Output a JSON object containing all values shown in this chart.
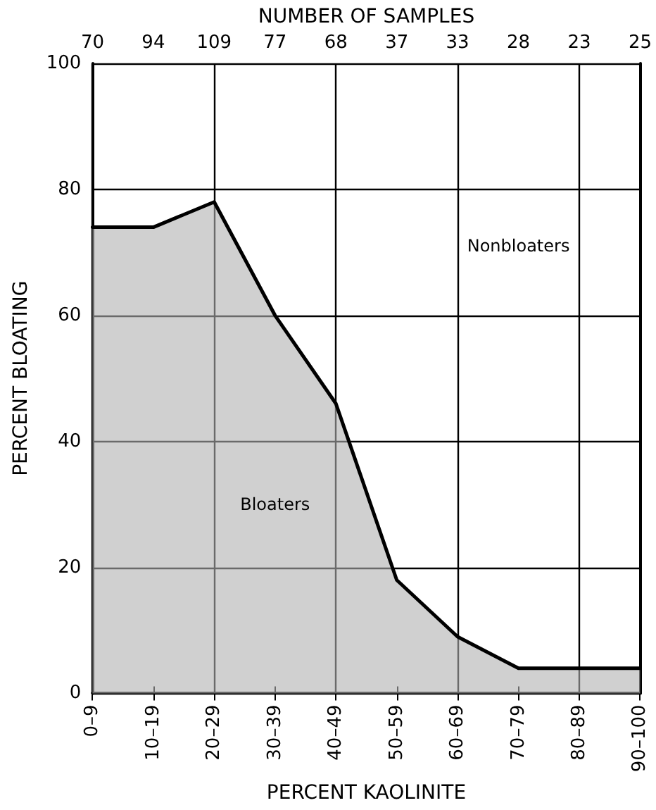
{
  "chart_data": {
    "type": "area",
    "xlabel": "PERCENT KAOLINITE",
    "ylabel": "PERCENT BLOATING",
    "x2label": "NUMBER OF SAMPLES",
    "categories": [
      "0–9",
      "10–19",
      "20–29",
      "30–39",
      "40–49",
      "50–59",
      "60–69",
      "70–79",
      "80–89",
      "90–100"
    ],
    "series": [
      {
        "color": "#000000",
        "values": [
          74,
          74,
          78,
          60,
          46,
          18,
          9,
          4,
          4,
          4
        ]
      }
    ],
    "ylim": [
      0,
      100
    ],
    "yticks": [
      0,
      20,
      40,
      60,
      80,
      100
    ],
    "grid": true,
    "marker": "none",
    "line_style": "solid",
    "annotations": [
      "70",
      "94",
      "109",
      "77",
      "68",
      "37",
      "33",
      "28",
      "23",
      "25",
      "Bloaters",
      "Nonbloaters"
    ]
  }
}
